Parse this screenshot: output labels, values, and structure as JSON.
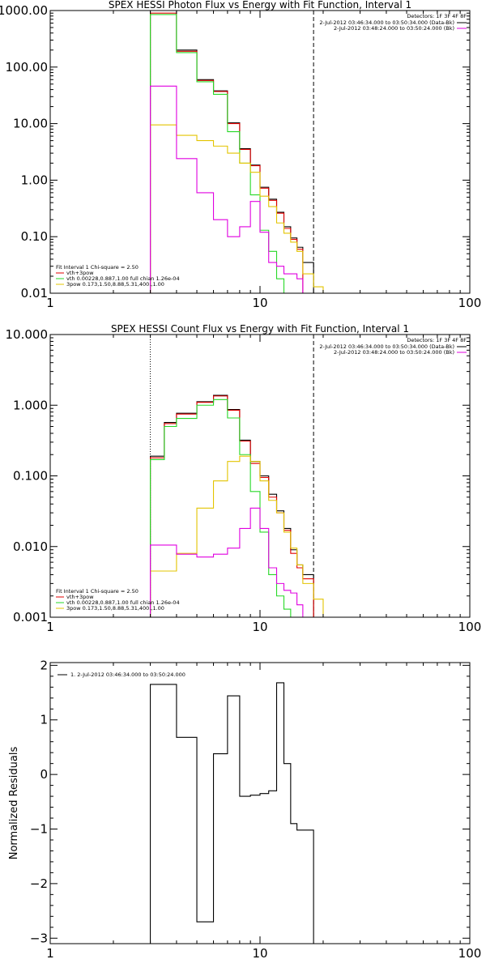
{
  "colors": {
    "black": "#000000",
    "red": "#e00000",
    "green": "#27d827",
    "magenta": "#e000e0",
    "yellow": "#e3c400",
    "orange": "#f09000"
  },
  "chart_data": [
    {
      "type": "line",
      "title": "SPEX HESSI Photon Flux vs Energy with Fit Function, Interval 1",
      "xscale": "log",
      "yscale": "log",
      "xlim": [
        1,
        100
      ],
      "ylim": [
        0.01,
        1000
      ],
      "xticks": [
        1,
        10,
        100
      ],
      "xtick_labels": [
        "1",
        "10",
        "100"
      ],
      "yticks": [
        0.01,
        0.1,
        1,
        10,
        100,
        1000
      ],
      "ytick_labels": [
        "0.01",
        "0.10",
        "1.00",
        "10.00",
        "100.00",
        "1000.00"
      ],
      "vertical_markers": [
        {
          "x": 3.0,
          "style": "dotted",
          "color": "orange"
        },
        {
          "x": 18.0,
          "style": "dashed",
          "color": "black"
        }
      ],
      "legend_tr": {
        "header": "Detectors: 1F 3F 4F 8F",
        "lines": [
          {
            "text": "2-Jul-2012 03:46:34.000 to 03:50:34.000 (Data-Bk)",
            "color": "black"
          },
          {
            "text": "2-Jul-2012 03:48:24.000 to 03:50:24.000 (Bk)",
            "color": "magenta"
          }
        ]
      },
      "legend_bl": {
        "header": "Fit Interval 1   Chi-square = 2.50",
        "lines": [
          {
            "text": "vth+3pow",
            "color": "red"
          },
          {
            "text": "vth 0.00228,0.887,1.00  full chian 1.26e-04",
            "color": "green"
          },
          {
            "text": "3pow 0.173,1.50,8.88,5.31,400.,1.00",
            "color": "yellow"
          }
        ]
      },
      "edges": [
        3.0,
        3.5,
        4.0,
        5.0,
        5.5,
        6.0,
        7.0,
        7.5,
        8.0,
        9.0,
        10.0,
        11.0,
        12.0,
        13.0,
        14.0,
        15.0,
        16.0,
        18.0,
        20.0,
        22.0
      ],
      "series": [
        {
          "name": "Data-Bk",
          "color": "black",
          "start_bin": 0,
          "values": [
            1000,
            1000,
            200,
            60,
            60,
            38,
            10.3,
            10.3,
            3.6,
            1.85,
            0.75,
            0.46,
            0.27,
            0.15,
            0.095,
            0.065,
            0.035
          ]
        },
        {
          "name": "vth+3pow",
          "color": "red",
          "start_bin": 0,
          "values": [
            900,
            900,
            190,
            58,
            58,
            37,
            10,
            10,
            3.5,
            1.8,
            0.72,
            0.44,
            0.26,
            0.14,
            0.09,
            0.06
          ]
        },
        {
          "name": "vth",
          "color": "green",
          "start_bin": 0,
          "values": [
            850,
            850,
            180,
            55,
            55,
            33,
            7.2,
            7.2,
            2.0,
            0.55,
            0.13,
            0.055,
            0.018,
            0.01
          ]
        },
        {
          "name": "3pow",
          "color": "yellow",
          "start_bin": 0,
          "values": [
            9.5,
            9.5,
            6.2,
            5.0,
            5.0,
            4.0,
            3.0,
            3.0,
            2.0,
            1.38,
            0.52,
            0.34,
            0.175,
            0.115,
            0.08,
            0.055,
            0.022,
            0.013,
            0.01
          ]
        },
        {
          "name": "Bk",
          "color": "magenta",
          "start_bin": 0,
          "values": [
            46,
            46,
            2.4,
            0.6,
            0.6,
            0.2,
            0.1,
            0.1,
            0.15,
            0.42,
            0.12,
            0.035,
            0.03,
            0.022,
            0.022,
            0.018,
            0.01
          ]
        }
      ]
    },
    {
      "type": "line",
      "title": "SPEX HESSI Count Flux vs Energy with Fit Function, Interval 1",
      "xscale": "log",
      "yscale": "log",
      "xlim": [
        1,
        100
      ],
      "ylim": [
        0.001,
        10
      ],
      "xticks": [
        1,
        10,
        100
      ],
      "xtick_labels": [
        "1",
        "10",
        "100"
      ],
      "yticks": [
        0.001,
        0.01,
        0.1,
        1,
        10
      ],
      "ytick_labels": [
        "0.001",
        "0.010",
        "0.100",
        "1.000",
        "10.000"
      ],
      "vertical_markers": [
        {
          "x": 3.0,
          "style": "dotted",
          "color": "black"
        },
        {
          "x": 18.0,
          "style": "dashed",
          "color": "black"
        }
      ],
      "legend_tr": {
        "header": "Detectors: 1F 3F 4F 8F",
        "lines": [
          {
            "text": "2-Jul-2012 03:46:34.000 to 03:50:34.000 (Data-Bk)",
            "color": "black"
          },
          {
            "text": "2-Jul-2012 03:48:24.000 to 03:50:24.000 (Bk)",
            "color": "magenta"
          }
        ]
      },
      "legend_bl": {
        "header": "Fit Interval 1   Chi-square = 2.50",
        "lines": [
          {
            "text": "vth+3pow",
            "color": "red"
          },
          {
            "text": "vth 0.00228,0.887,1.00  full chian 1.26e-04",
            "color": "green"
          },
          {
            "text": "3pow 0.173,1.50,8.88,5.31,400.,1.00",
            "color": "yellow"
          }
        ]
      },
      "edges": [
        3.0,
        3.5,
        4.0,
        5.0,
        5.5,
        6.0,
        7.0,
        7.5,
        8.0,
        9.0,
        10.0,
        11.0,
        12.0,
        13.0,
        14.0,
        15.0,
        16.0,
        18.0,
        20.0,
        22.0
      ],
      "series": [
        {
          "name": "Data-Bk",
          "color": "black",
          "start_bin": 0,
          "values": [
            0.19,
            0.57,
            0.77,
            1.12,
            1.12,
            1.38,
            0.87,
            0.87,
            0.32,
            0.16,
            0.1,
            0.055,
            0.032,
            0.018,
            0.009,
            0.0055,
            0.004
          ]
        },
        {
          "name": "vth+3pow",
          "color": "red",
          "start_bin": 0,
          "values": [
            0.18,
            0.55,
            0.75,
            1.1,
            1.1,
            1.35,
            0.85,
            0.85,
            0.31,
            0.15,
            0.095,
            0.05,
            0.03,
            0.017,
            0.008,
            0.005,
            0.0035
          ]
        },
        {
          "name": "vth",
          "color": "green",
          "start_bin": 0,
          "values": [
            0.17,
            0.5,
            0.65,
            1.0,
            1.0,
            1.2,
            0.66,
            0.66,
            0.2,
            0.06,
            0.016,
            0.004,
            0.002,
            0.0013
          ]
        },
        {
          "name": "3pow",
          "color": "yellow",
          "start_bin": 0,
          "values": [
            0.0045,
            0.0045,
            0.008,
            0.035,
            0.035,
            0.085,
            0.16,
            0.16,
            0.19,
            0.16,
            0.085,
            0.045,
            0.03,
            0.016,
            0.0095,
            0.0055,
            0.003,
            0.0018,
            0.001
          ]
        },
        {
          "name": "Bk",
          "color": "magenta",
          "start_bin": 0,
          "values": [
            0.0105,
            0.0105,
            0.0078,
            0.0071,
            0.0071,
            0.0078,
            0.0095,
            0.0095,
            0.018,
            0.035,
            0.018,
            0.005,
            0.003,
            0.0024,
            0.0022,
            0.0015,
            0.001
          ]
        }
      ]
    },
    {
      "type": "line",
      "title": "",
      "ylabel": "Normalized Residuals",
      "xscale": "log",
      "yscale": "linear",
      "xlim": [
        1,
        100
      ],
      "ylim": [
        -3.1,
        2.05
      ],
      "xticks": [
        1,
        10,
        100
      ],
      "xtick_labels": [
        "1",
        "10",
        "100"
      ],
      "yticks": [
        -3,
        -2,
        -1,
        0,
        1,
        2
      ],
      "ytick_labels": [
        "−3",
        "−2",
        "−1",
        "0",
        "1",
        "2"
      ],
      "legend_tl": {
        "lines": [
          {
            "text": "1. 2-Jul-2012 03:46:34.000 to 03:50:24.000",
            "color": "black"
          }
        ]
      },
      "edges": [
        3.0,
        4.0,
        5.0,
        6.0,
        7.0,
        8.0,
        9.0,
        10.0,
        11.0,
        12.0,
        13.0,
        14.0,
        15.0,
        16.0,
        18.0
      ],
      "series": [
        {
          "name": "1.",
          "color": "black",
          "start_bin": 0,
          "values": [
            1.65,
            0.68,
            -2.7,
            0.38,
            1.44,
            -0.4,
            -0.38,
            -0.35,
            -0.3,
            1.68,
            0.2,
            -0.9,
            -1.02,
            -1.02
          ]
        }
      ]
    }
  ]
}
